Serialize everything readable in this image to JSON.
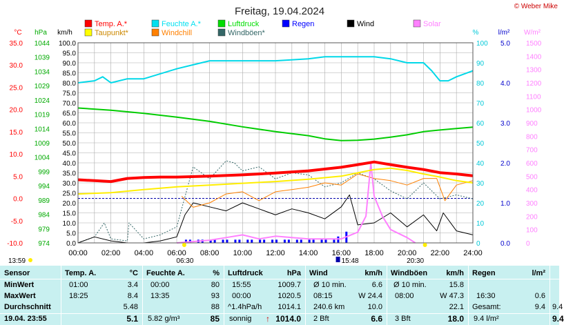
{
  "title": "Freitag, 19.04.2024",
  "credit": "© Weber Mike",
  "legend": [
    {
      "label": "Temp. A.*",
      "color": "#ff0000"
    },
    {
      "label": "Feuchte A.*",
      "color": "#00e0f0"
    },
    {
      "label": "Luftdruck",
      "color": "#00dd00"
    },
    {
      "label": "Regen",
      "color": "#0000ff"
    },
    {
      "label": "Wind",
      "color": "#000000"
    },
    {
      "label": "Solar",
      "color": "#ff80ff"
    },
    {
      "label": "Taupunkt*",
      "color": "#ffff00"
    },
    {
      "label": "Windchill",
      "color": "#ff8000"
    },
    {
      "label": "Windböen*",
      "color": "#336666"
    }
  ],
  "axis_titles": {
    "temp": "°C",
    "pressure": "hPa",
    "wind": "km/h",
    "humidity": "%",
    "rain": "l/m²",
    "solar": "W/m²"
  },
  "colors": {
    "temp": "#ff0000",
    "pressure": "#00cc00",
    "humidity": "#00d8e8",
    "rain": "#0000ff",
    "solar": "#ff80ff",
    "dew": "#ffee00",
    "chill": "#ff8000",
    "gust": "#336666",
    "wind": "#000000"
  },
  "chart_data": {
    "type": "line",
    "x_range": [
      "00:00",
      "24:00"
    ],
    "x_ticks": [
      "00:00",
      "02:00",
      "04:00",
      "06:00",
      "08:00",
      "10:00",
      "12:00",
      "14:00",
      "16:00",
      "18:00",
      "20:00",
      "22:00",
      "24:00"
    ],
    "axes": {
      "temp_c": {
        "ticks": [
          "35.0",
          "30.0",
          "25.0",
          "20.0",
          "15.0",
          "10.0",
          "5.0",
          "0.0",
          "-5.0",
          "-10.0"
        ],
        "range": [
          -10,
          35
        ]
      },
      "pressure_hpa": {
        "ticks": [
          "1044",
          "1039",
          "1034",
          "1029",
          "1024",
          "1019",
          "1014",
          "1009",
          "1004",
          "999",
          "994",
          "989",
          "984",
          "979",
          "974"
        ],
        "range": [
          974,
          1044
        ]
      },
      "wind_kmh": {
        "ticks": [
          "100.0",
          "95.0",
          "90.0",
          "85.0",
          "80.0",
          "75.0",
          "70.0",
          "65.0",
          "60.0",
          "55.0",
          "50.0",
          "45.0",
          "40.0",
          "35.0",
          "30.0",
          "25.0",
          "20.0",
          "15.0",
          "10.0",
          "5.0",
          "0.0"
        ],
        "range": [
          0,
          100
        ]
      },
      "humidity_pct": {
        "ticks": [
          "100",
          "90",
          "80",
          "70",
          "60",
          "50",
          "40",
          "30",
          "20",
          "10",
          "0"
        ],
        "range": [
          0,
          100
        ]
      },
      "rain_lm2": {
        "ticks": [
          "5.0",
          "4.0",
          "3.0",
          "2.0",
          "1.0",
          "0.0"
        ],
        "range": [
          0,
          5
        ]
      },
      "solar_wm2": {
        "ticks": [
          "1500",
          "1400",
          "1300",
          "1200",
          "1100",
          "1000",
          "900",
          "800",
          "700",
          "600",
          "500",
          "400",
          "300",
          "200",
          "100",
          "0"
        ],
        "range": [
          0,
          1500
        ]
      }
    },
    "series": [
      {
        "name": "Temp. A.*",
        "axis": "temp_c",
        "x": [
          0,
          1,
          2,
          3,
          4,
          5,
          6,
          8,
          10,
          12,
          14,
          16,
          17,
          18,
          19,
          20,
          21,
          22,
          23,
          24
        ],
        "y": [
          4.2,
          4.0,
          3.8,
          4.5,
          4.7,
          4.8,
          4.8,
          5.0,
          5.3,
          5.7,
          6.2,
          7.0,
          7.6,
          8.2,
          7.6,
          7.0,
          6.5,
          5.8,
          5.5,
          5.1
        ]
      },
      {
        "name": "Taupunkt*",
        "axis": "temp_c",
        "x": [
          0,
          2,
          4,
          6,
          8,
          10,
          12,
          14,
          16,
          18,
          19,
          20,
          21,
          22,
          23,
          24
        ],
        "y": [
          1.0,
          1.3,
          2.0,
          2.6,
          3.0,
          3.4,
          3.8,
          4.3,
          5.0,
          6.5,
          6.8,
          6.3,
          5.5,
          4.8,
          4.0,
          3.5
        ]
      },
      {
        "name": "Feuchte A.*",
        "axis": "humidity_pct",
        "x": [
          0,
          1,
          1.5,
          2,
          3,
          4,
          6,
          7,
          8,
          10,
          12,
          14,
          15,
          16,
          17,
          18,
          19,
          20,
          21,
          21.5,
          22,
          22.5,
          23,
          24
        ],
        "y": [
          80,
          81,
          83,
          80,
          82,
          82,
          87,
          89,
          91,
          91,
          91,
          92,
          93,
          93,
          93,
          93,
          92,
          90,
          90,
          86,
          81,
          81,
          83,
          86
        ]
      },
      {
        "name": "Luftdruck",
        "axis": "pressure_hpa",
        "x": [
          0,
          2,
          4,
          6,
          8,
          10,
          12,
          14,
          15,
          16,
          17,
          18,
          19,
          20,
          21,
          22,
          23,
          24
        ],
        "y": [
          1021.2,
          1020.4,
          1019.3,
          1018.0,
          1016.5,
          1014.6,
          1012.9,
          1011.5,
          1010.4,
          1009.8,
          1009.9,
          1010.3,
          1011.0,
          1011.8,
          1012.9,
          1013.5,
          1014.0,
          1014.5
        ]
      },
      {
        "name": "Windchill",
        "axis": "temp_c",
        "x": [
          6.3,
          7,
          8,
          9,
          10,
          11,
          12,
          13,
          14,
          15,
          16,
          17,
          18,
          19,
          20,
          21,
          21.8,
          22.3,
          23,
          24
        ],
        "y": [
          0.5,
          -2.0,
          -1.0,
          1.0,
          1.5,
          -0.5,
          1.5,
          2.0,
          2.5,
          3.5,
          3.0,
          5.5,
          4.5,
          4.0,
          3.0,
          4.5,
          4.5,
          -0.5,
          3.0,
          4.0
        ]
      },
      {
        "name": "Wind",
        "axis": "wind_kmh",
        "x": [
          0,
          1,
          2,
          3,
          4,
          5,
          6,
          6.5,
          7,
          8,
          9,
          10,
          11,
          12,
          13,
          14,
          15,
          16,
          16.5,
          17,
          18,
          19,
          20,
          21,
          21.8,
          22.2,
          23,
          24
        ],
        "y": [
          0,
          3,
          1,
          0,
          0,
          1,
          3,
          14,
          20,
          18,
          16,
          20,
          17,
          14,
          17,
          15,
          12,
          18,
          24,
          9,
          10,
          15,
          8,
          14,
          6,
          15,
          6,
          4
        ]
      },
      {
        "name": "Windböen*",
        "axis": "wind_kmh",
        "x": [
          0,
          1,
          1.6,
          2,
          3,
          3.1,
          4,
          5,
          6,
          7,
          8,
          9,
          9.5,
          10,
          11,
          12,
          13,
          14,
          15,
          16,
          17,
          18,
          19,
          20,
          21,
          22,
          23,
          24
        ],
        "y": [
          0,
          3,
          10,
          2,
          1,
          10,
          2,
          4,
          8,
          38,
          32,
          41,
          40,
          36,
          38,
          32,
          35,
          34,
          28,
          30,
          35,
          32,
          26,
          22,
          30,
          22,
          24,
          22
        ]
      },
      {
        "name": "Solar",
        "axis": "solar_wm2",
        "x": [
          6,
          8,
          9,
          10,
          11,
          12,
          13,
          14,
          15,
          16,
          17,
          17.5,
          17.8,
          18,
          18.5,
          19,
          20,
          20.5
        ],
        "y": [
          0,
          20,
          40,
          60,
          30,
          50,
          40,
          30,
          30,
          30,
          80,
          200,
          600,
          350,
          200,
          100,
          40,
          0
        ]
      }
    ],
    "rain_bars_window": [
      "06:30",
      "16:30"
    ],
    "events": {
      "sunrise": "06:30",
      "sunset": "20:30",
      "moon": "15:48"
    }
  },
  "footer_time": "13:59",
  "table": {
    "sensor": {
      "title": "Sensor",
      "rows": [
        "MinWert",
        "MaxWert",
        "Durchschnitt"
      ],
      "current": "19.04. 23:55"
    },
    "temp": {
      "title": "Temp. A.",
      "unit": "°C",
      "min_time": "01:00",
      "min": "3.4",
      "max_time": "18:25",
      "max": "8.4",
      "avg": "5.48",
      "current": "5.1"
    },
    "hum": {
      "title": "Feuchte A.",
      "unit": "%",
      "min_time": "00:00",
      "min": "80",
      "max_time": "13:35",
      "max": "93",
      "avg": "88",
      "cur_label": "5.82 g/m³",
      "current": "85"
    },
    "press": {
      "title": "Luftdruck",
      "unit": "hPa",
      "min_time": "15:55",
      "min": "1009.7",
      "max_time": "00:00",
      "max": "1020.5",
      "avg_label": "^1.4hPa/h",
      "avg": "1014.1",
      "cur_label": "sonnig",
      "current": "1014.0",
      "trend": "↑"
    },
    "wind": {
      "title": "Wind",
      "unit": "km/h",
      "r1_label": "Ø 10 min.",
      "r1": "6.6",
      "r2_time": "08:15",
      "r2": "W 24.4",
      "r3_label": "240.6 km",
      "r3": "10.0",
      "cur_label": "2 Bft",
      "current": "6.6"
    },
    "gust": {
      "title": "Windböen",
      "unit": "km/h",
      "r1_label": "Ø 10 min.",
      "r1": "15.8",
      "r2_time": "08:00",
      "r2": "W 47.3",
      "r3": "22.1",
      "cur_label": "3 Bft",
      "current": "18.0"
    },
    "rain": {
      "title": "Regen",
      "unit": "l/m²",
      "r2_time": "16:30",
      "r2": "0.6",
      "r3_label": "Gesamt:",
      "r3": "9.4",
      "current": "9.4 l/m²"
    },
    "extra": {
      "r3": "9.4",
      "current": "9.4"
    }
  }
}
